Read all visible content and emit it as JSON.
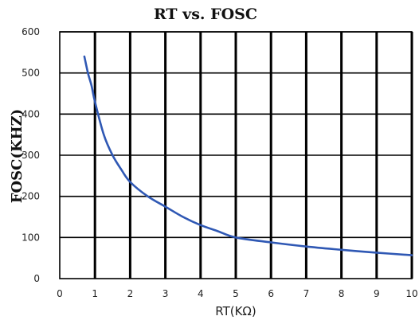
{
  "chart_data": {
    "type": "line",
    "title": "RT vs. FOSC",
    "xlabel": "RT(KΩ)",
    "ylabel": "FOSC(KHZ)",
    "xlim": [
      0,
      10
    ],
    "ylim": [
      0,
      600
    ],
    "x_ticks": [
      "0",
      "1",
      "2",
      "3",
      "4",
      "5",
      "6",
      "7",
      "8",
      "9",
      "10"
    ],
    "y_ticks": [
      "0",
      "100",
      "200",
      "300",
      "400",
      "500",
      "600"
    ],
    "grid": true,
    "legend": "none",
    "series": [
      {
        "color": "#2f58b4",
        "x": [
          0.7,
          0.8,
          0.9,
          1.0,
          1.25,
          1.5,
          1.75,
          2.0,
          2.5,
          3.0,
          3.5,
          4.0,
          4.5,
          5.0,
          6.0,
          7.0,
          8.0,
          9.0,
          10.0
        ],
        "y": [
          540,
          500,
          470,
          430,
          350,
          300,
          265,
          235,
          200,
          175,
          150,
          130,
          115,
          100,
          88,
          78,
          70,
          63,
          57
        ]
      }
    ]
  }
}
